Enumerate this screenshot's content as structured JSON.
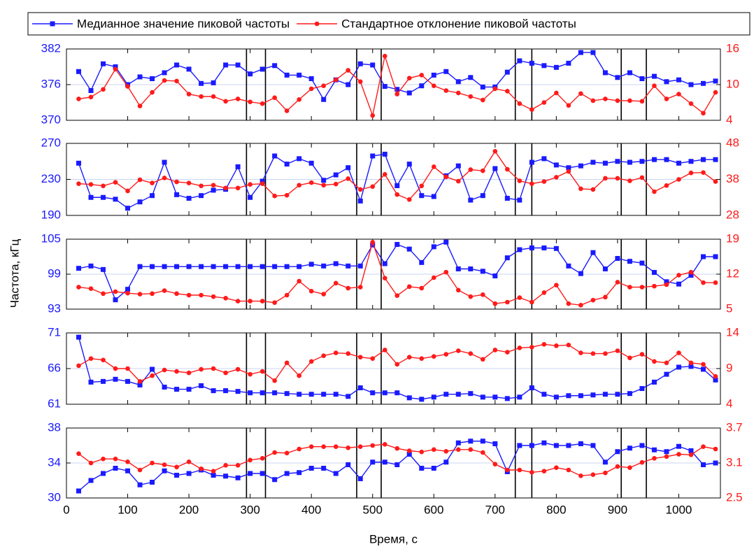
{
  "chart_data": [
    {
      "type": "line",
      "ylabel": "Частота, кГц",
      "x": [
        20,
        40,
        60,
        80,
        100,
        120,
        140,
        160,
        180,
        200,
        220,
        240,
        260,
        280,
        300,
        320,
        340,
        360,
        380,
        400,
        420,
        440,
        460,
        480,
        500,
        520,
        540,
        560,
        580,
        600,
        620,
        640,
        660,
        680,
        700,
        720,
        740,
        760,
        780,
        800,
        820,
        840,
        860,
        880,
        900,
        920,
        940,
        960,
        980,
        1000,
        1020,
        1040,
        1060
      ],
      "xlim": [
        0,
        1068
      ],
      "xticks": [
        0,
        100,
        200,
        300,
        400,
        500,
        600,
        700,
        800,
        900,
        1000
      ],
      "events": [
        294,
        325,
        474,
        514,
        733,
        760,
        906,
        947
      ],
      "ylim": [
        370,
        382
      ],
      "yticks": [
        370,
        376,
        382
      ],
      "y2lim": [
        4,
        16
      ],
      "y2ticks": [
        4,
        10,
        16
      ],
      "series": [
        {
          "name": "Медианное значение пиковой частоты",
          "color": "#1a1aff",
          "values": [
            378.2,
            375.0,
            379.5,
            379.0,
            376.0,
            377.3,
            377.0,
            378.0,
            379.3,
            378.6,
            376.2,
            376.3,
            379.3,
            379.3,
            377.8,
            378.6,
            379.2,
            377.6,
            377.6,
            377.0,
            373.5,
            376.8,
            376.0,
            379.5,
            379.3,
            375.7,
            375.2,
            374.6,
            375.8,
            377.6,
            378.2,
            376.5,
            377.2,
            375.6,
            375.6,
            378.1,
            380.0,
            379.6,
            379.2,
            378.9,
            379.6,
            381.4,
            381.4,
            378.0,
            377.2,
            378.0,
            377.0,
            377.4,
            376.5,
            376.8,
            376.0,
            376.2,
            376.6
          ]
        },
        {
          "name": "Стандартное отклонение пиковой частоты",
          "color": "#ff1a1a",
          "axis": "y2",
          "values": [
            7.6,
            7.9,
            9.2,
            12.6,
            9.7,
            6.4,
            8.7,
            10.7,
            10.6,
            8.4,
            8.0,
            8.0,
            7.2,
            7.6,
            7.1,
            6.8,
            7.8,
            5.6,
            7.5,
            9.3,
            9.8,
            10.8,
            12.4,
            10.5,
            4.8,
            14.8,
            8.4,
            11.1,
            11.6,
            9.8,
            9.0,
            8.6,
            8.0,
            7.4,
            9.3,
            8.9,
            6.8,
            5.8,
            7.0,
            8.6,
            6.5,
            8.5,
            7.3,
            7.6,
            7.3,
            7.3,
            7.2,
            9.8,
            7.6,
            8.4,
            6.8,
            5.2,
            8.7
          ]
        }
      ]
    },
    {
      "type": "line",
      "x": [
        20,
        40,
        60,
        80,
        100,
        120,
        140,
        160,
        180,
        200,
        220,
        240,
        260,
        280,
        300,
        320,
        340,
        360,
        380,
        400,
        420,
        440,
        460,
        480,
        500,
        520,
        540,
        560,
        580,
        600,
        620,
        640,
        660,
        680,
        700,
        720,
        740,
        760,
        780,
        800,
        820,
        840,
        860,
        880,
        900,
        920,
        940,
        960,
        980,
        1000,
        1020,
        1040,
        1060
      ],
      "xlim": [
        0,
        1068
      ],
      "xticks": [
        0,
        100,
        200,
        300,
        400,
        500,
        600,
        700,
        800,
        900,
        1000
      ],
      "events": [
        294,
        325,
        474,
        514,
        733,
        760,
        906,
        947
      ],
      "ylim": [
        190,
        270
      ],
      "yticks": [
        190,
        230,
        270
      ],
      "y2lim": [
        28,
        48
      ],
      "y2ticks": [
        28,
        38,
        48
      ],
      "series": [
        {
          "color": "#1a1aff",
          "values": [
            248,
            210,
            210,
            208,
            198,
            205,
            212,
            249,
            213,
            209,
            212,
            218,
            219,
            244,
            210,
            228,
            256,
            247,
            253,
            248,
            229,
            235,
            243,
            206,
            256,
            258,
            223,
            247,
            212,
            211,
            234,
            245,
            207,
            212,
            242,
            209,
            207,
            249,
            253,
            246,
            243,
            245,
            249,
            248,
            250,
            249,
            250,
            252,
            252,
            248,
            250,
            252,
            252
          ]
        },
        {
          "color": "#ff1a1a",
          "axis": "y2",
          "values": [
            36.8,
            36.6,
            36.2,
            37.2,
            34.8,
            37.9,
            37.0,
            38.4,
            37.3,
            37.0,
            36.2,
            36.4,
            35.6,
            35.6,
            36.6,
            36.8,
            33.4,
            33.6,
            36.4,
            37.1,
            36.4,
            36.7,
            38.2,
            35.2,
            36.0,
            39.4,
            33.8,
            32.4,
            36.2,
            41.5,
            38.7,
            37.5,
            40.7,
            40.4,
            45.8,
            40.8,
            37.6,
            36.8,
            37.4,
            38.6,
            40.2,
            35.4,
            35.2,
            38.3,
            38.3,
            37.6,
            38.5,
            34.6,
            36.3,
            38.0,
            39.8,
            39.9,
            37.4
          ]
        }
      ]
    },
    {
      "type": "line",
      "x": [
        20,
        40,
        60,
        80,
        100,
        120,
        140,
        160,
        180,
        200,
        220,
        240,
        260,
        280,
        300,
        320,
        340,
        360,
        380,
        400,
        420,
        440,
        460,
        480,
        500,
        520,
        540,
        560,
        580,
        600,
        620,
        640,
        660,
        680,
        700,
        720,
        740,
        760,
        780,
        800,
        820,
        840,
        860,
        880,
        900,
        920,
        940,
        960,
        980,
        1000,
        1020,
        1040,
        1060
      ],
      "xlim": [
        0,
        1068
      ],
      "xticks": [
        0,
        100,
        200,
        300,
        400,
        500,
        600,
        700,
        800,
        900,
        1000
      ],
      "events": [
        294,
        325,
        474,
        514,
        733,
        760,
        906,
        947
      ],
      "ylim": [
        93,
        105
      ],
      "yticks": [
        93,
        99,
        105
      ],
      "y2lim": [
        5,
        19
      ],
      "y2ticks": [
        5,
        12,
        19
      ],
      "series": [
        {
          "color": "#1a1aff",
          "values": [
            100.0,
            100.4,
            99.8,
            94.6,
            96.4,
            100.3,
            100.3,
            100.3,
            100.3,
            100.3,
            100.3,
            100.3,
            100.3,
            100.3,
            100.3,
            100.3,
            100.3,
            100.3,
            100.3,
            100.7,
            100.4,
            100.8,
            100.4,
            100.4,
            104.0,
            100.8,
            104.1,
            103.3,
            101.0,
            103.7,
            104.5,
            99.9,
            99.9,
            99.5,
            98.7,
            101.8,
            103.2,
            103.5,
            103.5,
            103.4,
            100.4,
            99.1,
            102.7,
            99.9,
            101.7,
            101.2,
            100.9,
            99.3,
            97.7,
            97.3,
            98.8,
            102.0,
            102.0
          ]
        },
        {
          "color": "#ff1a1a",
          "axis": "y2",
          "values": [
            9.4,
            9.1,
            8.1,
            8.5,
            8.2,
            8.0,
            8.1,
            8.7,
            8.1,
            7.8,
            7.8,
            7.5,
            7.2,
            6.6,
            6.6,
            6.6,
            6.3,
            7.8,
            10.6,
            8.6,
            8.0,
            10.2,
            9.2,
            9.4,
            18.4,
            11.2,
            7.7,
            9.5,
            9.2,
            11.3,
            12.4,
            8.8,
            7.5,
            7.9,
            6.1,
            6.4,
            7.3,
            6.4,
            8.3,
            9.8,
            6.1,
            5.8,
            6.8,
            7.4,
            10.4,
            9.4,
            9.4,
            9.6,
            9.9,
            11.8,
            12.4,
            10.3,
            10.3
          ]
        }
      ]
    },
    {
      "type": "line",
      "x": [
        20,
        40,
        60,
        80,
        100,
        120,
        140,
        160,
        180,
        200,
        220,
        240,
        260,
        280,
        300,
        320,
        340,
        360,
        380,
        400,
        420,
        440,
        460,
        480,
        500,
        520,
        540,
        560,
        580,
        600,
        620,
        640,
        660,
        680,
        700,
        720,
        740,
        760,
        780,
        800,
        820,
        840,
        860,
        880,
        900,
        920,
        940,
        960,
        980,
        1000,
        1020,
        1040,
        1060
      ],
      "xlim": [
        0,
        1068
      ],
      "xticks": [
        0,
        100,
        200,
        300,
        400,
        500,
        600,
        700,
        800,
        900,
        1000
      ],
      "events": [
        294,
        325,
        474,
        514,
        733,
        760,
        906,
        947
      ],
      "ylim": [
        61,
        71
      ],
      "yticks": [
        61,
        66,
        71
      ],
      "y2lim": [
        4,
        14
      ],
      "y2ticks": [
        4,
        9,
        14
      ],
      "series": [
        {
          "color": "#1a1aff",
          "values": [
            70.4,
            64.1,
            64.2,
            64.5,
            64.2,
            63.7,
            65.9,
            63.4,
            63.1,
            63.1,
            63.6,
            62.9,
            62.9,
            62.8,
            62.6,
            62.6,
            62.6,
            62.5,
            62.4,
            62.4,
            62.4,
            62.4,
            62.1,
            63.3,
            62.6,
            62.6,
            62.6,
            61.9,
            61.7,
            62.0,
            62.4,
            62.4,
            62.5,
            62.0,
            62.0,
            61.8,
            62.0,
            63.3,
            62.4,
            62.0,
            62.2,
            62.2,
            62.3,
            62.4,
            62.4,
            62.5,
            63.2,
            64.1,
            65.2,
            66.2,
            66.3,
            65.9,
            64.4
          ]
        },
        {
          "color": "#ff1a1a",
          "axis": "y2",
          "values": [
            9.4,
            10.4,
            10.2,
            9.0,
            9.0,
            7.2,
            8.0,
            8.8,
            8.6,
            8.4,
            8.9,
            9.0,
            8.4,
            8.9,
            8.2,
            8.6,
            7.3,
            9.8,
            8.0,
            10.0,
            10.8,
            11.2,
            11.1,
            10.6,
            10.4,
            11.6,
            9.6,
            10.6,
            10.4,
            10.7,
            11.0,
            11.5,
            11.1,
            10.3,
            11.6,
            11.3,
            11.9,
            12.0,
            12.4,
            12.2,
            12.3,
            11.2,
            11.1,
            11.1,
            11.5,
            10.5,
            11.0,
            10.0,
            9.8,
            11.2,
            9.8,
            9.6,
            7.9
          ]
        }
      ]
    },
    {
      "type": "line",
      "xlabel": "Время, с",
      "x": [
        20,
        40,
        60,
        80,
        100,
        120,
        140,
        160,
        180,
        200,
        220,
        240,
        260,
        280,
        300,
        320,
        340,
        360,
        380,
        400,
        420,
        440,
        460,
        480,
        500,
        520,
        540,
        560,
        580,
        600,
        620,
        640,
        660,
        680,
        700,
        720,
        740,
        760,
        780,
        800,
        820,
        840,
        860,
        880,
        900,
        920,
        940,
        960,
        980,
        1000,
        1020,
        1040,
        1060
      ],
      "xlim": [
        0,
        1068
      ],
      "xticks": [
        0,
        100,
        200,
        300,
        400,
        500,
        600,
        700,
        800,
        900,
        1000
      ],
      "events": [
        294,
        325,
        474,
        514,
        733,
        760,
        906,
        947
      ],
      "ylim": [
        30,
        38
      ],
      "yticks": [
        30,
        34,
        38
      ],
      "y2lim": [
        2.5,
        3.7
      ],
      "y2ticks": [
        2.5,
        3.1,
        3.7
      ],
      "series": [
        {
          "color": "#1a1aff",
          "values": [
            30.8,
            32.0,
            32.8,
            33.4,
            33.1,
            31.5,
            31.8,
            33.1,
            32.6,
            32.8,
            33.2,
            32.6,
            32.5,
            32.3,
            32.8,
            32.8,
            32.1,
            32.8,
            32.9,
            33.4,
            33.4,
            32.8,
            33.8,
            32.2,
            34.1,
            34.1,
            33.8,
            35.0,
            33.4,
            33.4,
            34.1,
            36.3,
            36.5,
            36.5,
            36.2,
            33.0,
            36.0,
            36.0,
            36.3,
            36.0,
            36.0,
            36.2,
            36.0,
            34.1,
            35.3,
            35.7,
            36.0,
            35.5,
            35.3,
            35.9,
            35.4,
            33.8,
            34.0
          ]
        },
        {
          "color": "#ff1a1a",
          "axis": "y2",
          "values": [
            3.26,
            3.1,
            3.17,
            3.17,
            3.12,
            2.98,
            3.1,
            3.07,
            3.03,
            3.12,
            3.0,
            2.96,
            3.06,
            3.06,
            3.15,
            3.18,
            3.28,
            3.27,
            3.34,
            3.38,
            3.38,
            3.38,
            3.36,
            3.38,
            3.4,
            3.42,
            3.35,
            3.31,
            3.29,
            3.33,
            3.3,
            3.33,
            3.33,
            3.28,
            3.08,
            2.98,
            2.98,
            2.94,
            2.96,
            3.02,
            2.98,
            2.88,
            2.9,
            2.93,
            3.04,
            3.02,
            3.11,
            3.18,
            3.21,
            3.25,
            3.24,
            3.38,
            3.34
          ]
        }
      ]
    }
  ]
}
